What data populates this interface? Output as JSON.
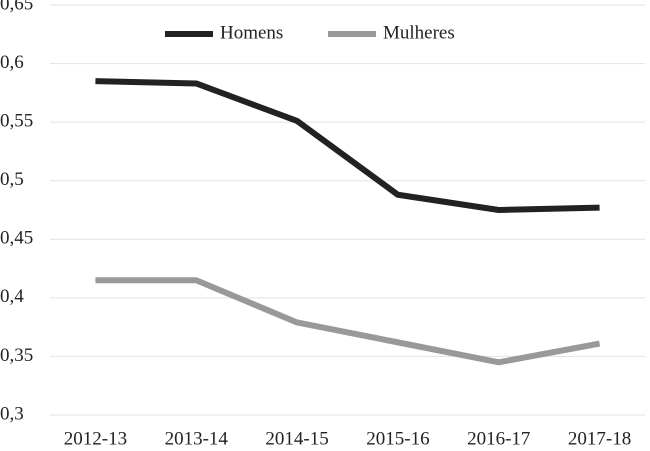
{
  "chart_data": {
    "type": "line",
    "categories": [
      "2012-13",
      "2013-14",
      "2014-15",
      "2015-16",
      "2016-17",
      "2017-18"
    ],
    "series": [
      {
        "name": "Homens",
        "color": "#222222",
        "values": [
          0.585,
          0.583,
          0.551,
          0.488,
          0.475,
          0.477
        ]
      },
      {
        "name": "Mulheres",
        "color": "#999999",
        "values": [
          0.415,
          0.415,
          0.379,
          0.362,
          0.345,
          0.361
        ]
      }
    ],
    "ylim": [
      0.3,
      0.65
    ],
    "yticks": [
      {
        "value": 0.3,
        "label": "0,3"
      },
      {
        "value": 0.35,
        "label": "0,35"
      },
      {
        "value": 0.4,
        "label": "0,4"
      },
      {
        "value": 0.45,
        "label": "0,45"
      },
      {
        "value": 0.5,
        "label": "0,5"
      },
      {
        "value": 0.55,
        "label": "0,55"
      },
      {
        "value": 0.6,
        "label": "0,6"
      },
      {
        "value": 0.65,
        "label": "0,65"
      }
    ],
    "grid": true,
    "legend": "top"
  }
}
